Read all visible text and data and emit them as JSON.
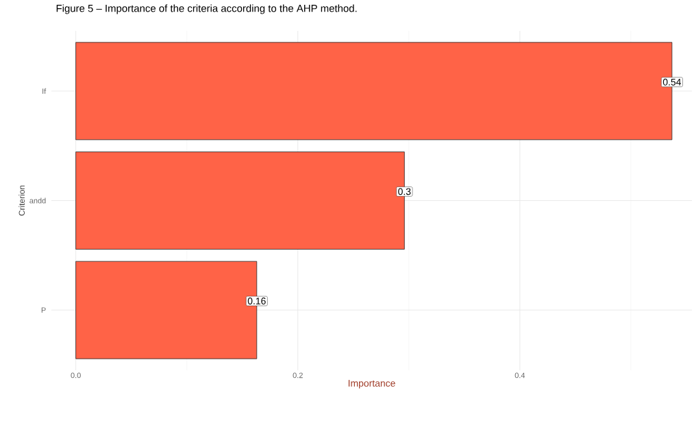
{
  "chart_data": {
    "type": "bar",
    "orientation": "horizontal",
    "title": "Figure 5 – Importance of the criteria according to the AHP method.",
    "xlabel": "Importance",
    "ylabel": "Criterion",
    "categories": [
      "If",
      "andd",
      "P"
    ],
    "values": [
      0.537,
      0.296,
      0.163
    ],
    "value_labels": [
      "0.54",
      "0.3",
      "0.16"
    ],
    "color": "#ff6347",
    "xlim": [
      -0.022,
      0.555
    ],
    "xticks": [
      {
        "value": 0,
        "label": "0.0"
      },
      {
        "value": 0.1,
        "label": null
      },
      {
        "value": 0.2,
        "label": "0.2"
      },
      {
        "value": 0.3,
        "label": null
      },
      {
        "value": 0.4,
        "label": "0.4"
      },
      {
        "value": 0.5,
        "label": null
      }
    ],
    "grid": true
  }
}
